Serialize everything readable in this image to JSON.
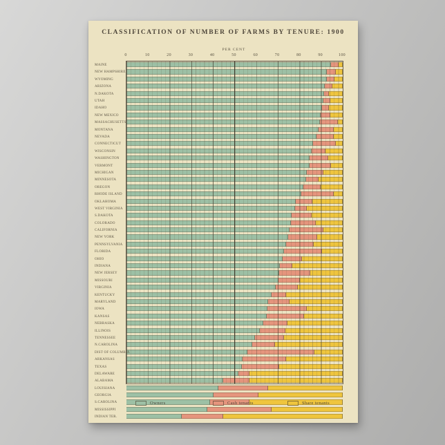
{
  "poster": {
    "title": "CLASSIFICATION OF NUMBER OF FARMS BY TENURE: 1900"
  },
  "axis": {
    "label": "PER CENT",
    "ticks": [
      0,
      10,
      20,
      30,
      40,
      50,
      60,
      70,
      80,
      90,
      100
    ]
  },
  "legend": {
    "items": [
      {
        "label": "Owners",
        "color": "#9dc0a5"
      },
      {
        "label": "Cash tenants",
        "color": "#e5957d"
      },
      {
        "label": "Share tenants",
        "color": "#efc53e"
      }
    ]
  },
  "chart_data": {
    "type": "bar",
    "subtype": "horizontal-stacked",
    "title": "CLASSIFICATION OF NUMBER OF FARMS BY TENURE: 1900",
    "xlabel": "PER CENT",
    "xlim": [
      0,
      100
    ],
    "grid": "vertical, minor every 2, major every 10",
    "legend_position": "bottom",
    "categories": [
      "MAINE",
      "NEW HAMPSHIRE",
      "WYOMING",
      "ARIZONA",
      "N.DAKOTA",
      "UTAH",
      "IDAHO",
      "NEW MEXICO",
      "MASSACHUSETTS",
      "MONTANA",
      "NEVADA",
      "CONNECTICUT",
      "WISCONSIN",
      "WASHINGTON",
      "VERMONT",
      "MICHIGAN",
      "MINNESOTA",
      "OREGON",
      "RHODE ISLAND",
      "OKLAHOMA",
      "WEST VIRGINIA",
      "S.DAKOTA",
      "COLORADO",
      "CALIFORNIA",
      "NEW YORK",
      "PENNSYLVANIA",
      "FLORIDA",
      "OHIO",
      "INDIANA",
      "NEW JERSEY",
      "MISSOURI",
      "VIRGINIA",
      "KENTUCKY",
      "MARYLAND",
      "IOWA",
      "KANSAS",
      "NEBRASKA",
      "ILLINOIS",
      "TENNESSEE",
      "N.CAROLINA",
      "DIST OF COLUMBIA",
      "ARKANSAS",
      "TEXAS",
      "DELAWARE",
      "ALABAMA",
      "LOUISIANA",
      "GEORGIA",
      "S.CAROLINA",
      "MISSISSIPPI",
      "INDIAN TER."
    ],
    "series": [
      {
        "name": "Owners",
        "color": "#9dc0a5",
        "values": [
          94.5,
          92.8,
          92.5,
          91.7,
          91.4,
          90.9,
          90.4,
          89.8,
          89.3,
          88.8,
          87.8,
          86.2,
          85.7,
          84.8,
          84.6,
          83.5,
          83.0,
          81.9,
          80.8,
          78.4,
          78.0,
          76.2,
          76.0,
          75.5,
          74.7,
          73.7,
          72.8,
          72.3,
          70.9,
          70.5,
          70.2,
          69.1,
          67.0,
          65.4,
          65.3,
          64.8,
          63.3,
          61.7,
          59.5,
          58.0,
          55.8,
          53.7,
          53.4,
          51.6,
          44.6,
          42.4,
          40.3,
          38.7,
          37.4,
          25.4
        ]
      },
      {
        "name": "Cash tenants",
        "color": "#e5957d",
        "values": [
          3.5,
          4.0,
          3.8,
          3.5,
          2.3,
          3.2,
          3.2,
          4.3,
          8.4,
          6.9,
          7.9,
          10.6,
          6.4,
          8.4,
          10.1,
          7.5,
          5.8,
          8.0,
          14.9,
          7.5,
          5.5,
          9.4,
          11.7,
          15.4,
          13.5,
          12.8,
          17.6,
          9.0,
          5.9,
          14.4,
          10.1,
          10.1,
          6.9,
          10.1,
          18.2,
          17.2,
          11.1,
          11.7,
          13.3,
          10.6,
          31.2,
          20.2,
          17.3,
          5.3,
          12.3,
          23.0,
          20.8,
          18.2,
          29.7,
          19.2
        ]
      },
      {
        "name": "Share tenants",
        "color": "#efc53e",
        "values": [
          2.0,
          3.2,
          3.7,
          4.8,
          6.3,
          5.9,
          6.4,
          5.9,
          2.3,
          4.3,
          4.3,
          3.2,
          7.9,
          6.8,
          5.3,
          9.0,
          11.2,
          10.1,
          4.3,
          14.1,
          16.5,
          14.4,
          12.3,
          9.1,
          11.8,
          13.5,
          9.6,
          18.7,
          23.2,
          15.1,
          19.7,
          20.8,
          26.1,
          24.5,
          16.5,
          18.0,
          25.6,
          26.6,
          27.2,
          31.4,
          13.0,
          26.1,
          29.3,
          43.1,
          43.1,
          34.6,
          38.9,
          43.1,
          32.9,
          55.4
        ]
      }
    ]
  }
}
